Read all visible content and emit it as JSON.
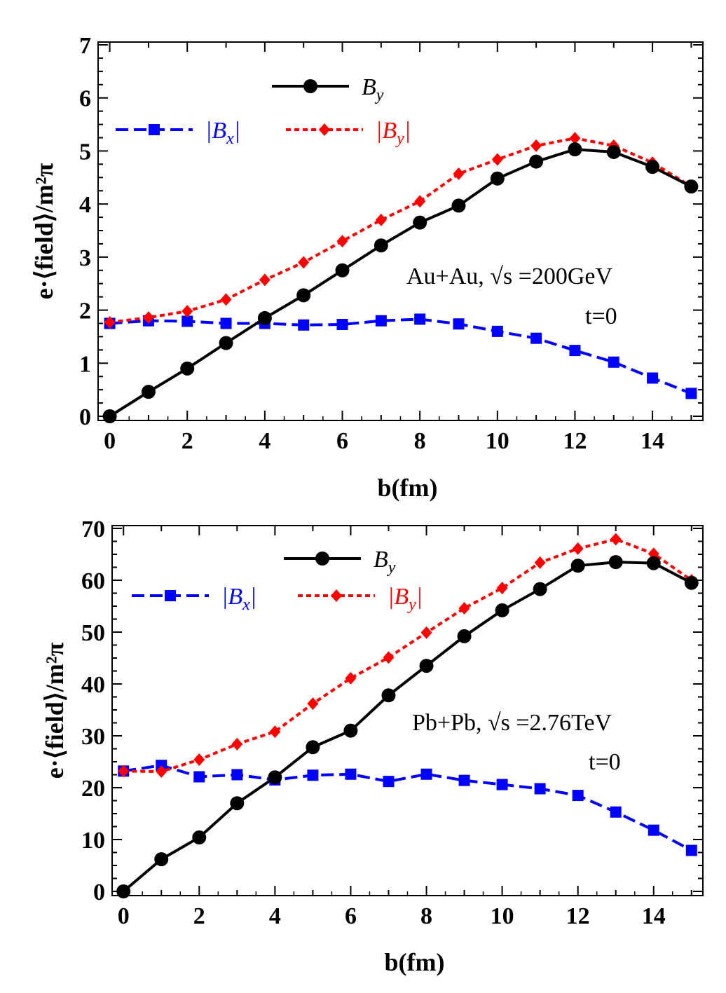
{
  "chart_data": [
    {
      "type": "line",
      "xlabel": "b(fm)",
      "ylabel": "e·⟨field⟩/m²π",
      "xlim": [
        -0.3,
        15.3
      ],
      "ylim": [
        0,
        7
      ],
      "xticks": [
        "0",
        "2",
        "4",
        "6",
        "8",
        "10",
        "12",
        "14"
      ],
      "yticks": [
        "0",
        "1",
        "2",
        "3",
        "4",
        "5",
        "6",
        "7"
      ],
      "annotation": "Au+Au, √s =200GeV",
      "annotation2": "t=0",
      "legend_placement": "top-left",
      "x": [
        0,
        1,
        2,
        3,
        4,
        5,
        6,
        7,
        8,
        9,
        10,
        11,
        12,
        13,
        14,
        15
      ],
      "series": [
        {
          "name": "B_y",
          "color": "#000000",
          "marker": "circle",
          "style": "solid",
          "values": [
            0,
            0.46,
            0.9,
            1.38,
            1.85,
            2.28,
            2.75,
            3.22,
            3.65,
            3.97,
            4.48,
            4.8,
            5.03,
            4.98,
            4.7,
            4.33
          ]
        },
        {
          "name": "|B_x|",
          "color": "#0000ff",
          "marker": "square",
          "style": "dashed",
          "values": [
            1.75,
            1.8,
            1.79,
            1.75,
            1.75,
            1.72,
            1.73,
            1.8,
            1.83,
            1.74,
            1.6,
            1.47,
            1.24,
            1.02,
            0.72,
            0.43
          ]
        },
        {
          "name": "|B_y|",
          "color": "#ff0000",
          "marker": "diamond",
          "style": "dotted",
          "values": [
            1.77,
            1.86,
            1.98,
            2.2,
            2.57,
            2.9,
            3.3,
            3.7,
            4.05,
            4.57,
            4.84,
            5.1,
            5.24,
            5.1,
            4.78,
            4.33
          ]
        }
      ]
    },
    {
      "type": "line",
      "xlabel": "b(fm)",
      "ylabel": "e·⟨field⟩/m²π",
      "xlim": [
        -0.3,
        15.3
      ],
      "ylim": [
        0,
        70
      ],
      "xticks": [
        "0",
        "2",
        "4",
        "6",
        "8",
        "10",
        "12",
        "14"
      ],
      "yticks": [
        "0",
        "10",
        "20",
        "30",
        "40",
        "50",
        "60",
        "70"
      ],
      "annotation": "Pb+Pb, √s =2.76TeV",
      "annotation2": "t=0",
      "legend_placement": "top-left",
      "x": [
        0,
        1,
        2,
        3,
        4,
        5,
        6,
        7,
        8,
        9,
        10,
        11,
        12,
        13,
        14,
        15
      ],
      "series": [
        {
          "name": "B_y",
          "color": "#000000",
          "marker": "circle",
          "style": "solid",
          "values": [
            0,
            6.2,
            10.4,
            17,
            22,
            27.8,
            31,
            37.8,
            43.5,
            49.2,
            54.2,
            58.3,
            62.8,
            63.5,
            63.3,
            59.5
          ]
        },
        {
          "name": "|B_x|",
          "color": "#0000ff",
          "marker": "square",
          "style": "dashed",
          "values": [
            23.2,
            24.3,
            22.1,
            22.5,
            21.5,
            22.4,
            22.6,
            21.2,
            22.6,
            21.4,
            20.6,
            19.8,
            18.5,
            15.3,
            11.8,
            7.9
          ]
        },
        {
          "name": "|B_y|",
          "color": "#ff0000",
          "marker": "diamond",
          "style": "dotted",
          "values": [
            23.2,
            23.1,
            25.4,
            28.4,
            30.8,
            36.2,
            41.1,
            45.1,
            49.9,
            54.6,
            58.5,
            63.4,
            66.1,
            67.9,
            65.1,
            60
          ]
        }
      ]
    }
  ]
}
